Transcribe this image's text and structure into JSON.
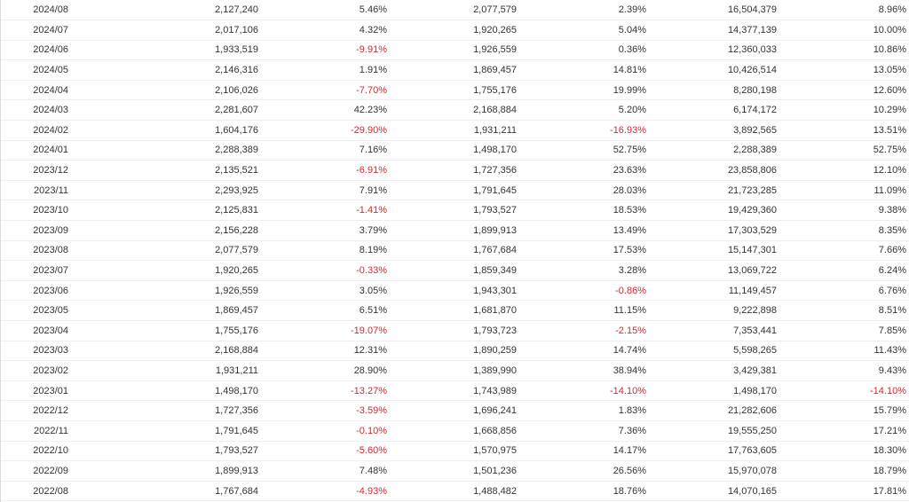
{
  "colors": {
    "negative": "#e0232d",
    "text": "#333333",
    "row_border": "#eeeeee"
  },
  "rows": [
    {
      "month": "2024/08",
      "revenue": "2,127,240",
      "mom": "5.46%",
      "prev_year_revenue": "2,077,579",
      "yoy": "2.39%",
      "cumulative": "16,504,379",
      "cumulative_yoy": "8.96%"
    },
    {
      "month": "2024/07",
      "revenue": "2,017,106",
      "mom": "4.32%",
      "prev_year_revenue": "1,920,265",
      "yoy": "5.04%",
      "cumulative": "14,377,139",
      "cumulative_yoy": "10.00%"
    },
    {
      "month": "2024/06",
      "revenue": "1,933,519",
      "mom": "-9.91%",
      "prev_year_revenue": "1,926,559",
      "yoy": "0.36%",
      "cumulative": "12,360,033",
      "cumulative_yoy": "10.86%"
    },
    {
      "month": "2024/05",
      "revenue": "2,146,316",
      "mom": "1.91%",
      "prev_year_revenue": "1,869,457",
      "yoy": "14.81%",
      "cumulative": "10,426,514",
      "cumulative_yoy": "13.05%"
    },
    {
      "month": "2024/04",
      "revenue": "2,106,026",
      "mom": "-7.70%",
      "prev_year_revenue": "1,755,176",
      "yoy": "19.99%",
      "cumulative": "8,280,198",
      "cumulative_yoy": "12.60%"
    },
    {
      "month": "2024/03",
      "revenue": "2,281,607",
      "mom": "42.23%",
      "prev_year_revenue": "2,168,884",
      "yoy": "5.20%",
      "cumulative": "6,174,172",
      "cumulative_yoy": "10.29%"
    },
    {
      "month": "2024/02",
      "revenue": "1,604,176",
      "mom": "-29.90%",
      "prev_year_revenue": "1,931,211",
      "yoy": "-16.93%",
      "cumulative": "3,892,565",
      "cumulative_yoy": "13.51%"
    },
    {
      "month": "2024/01",
      "revenue": "2,288,389",
      "mom": "7.16%",
      "prev_year_revenue": "1,498,170",
      "yoy": "52.75%",
      "cumulative": "2,288,389",
      "cumulative_yoy": "52.75%"
    },
    {
      "month": "2023/12",
      "revenue": "2,135,521",
      "mom": "-6.91%",
      "prev_year_revenue": "1,727,356",
      "yoy": "23.63%",
      "cumulative": "23,858,806",
      "cumulative_yoy": "12.10%"
    },
    {
      "month": "2023/11",
      "revenue": "2,293,925",
      "mom": "7.91%",
      "prev_year_revenue": "1,791,645",
      "yoy": "28.03%",
      "cumulative": "21,723,285",
      "cumulative_yoy": "11.09%"
    },
    {
      "month": "2023/10",
      "revenue": "2,125,831",
      "mom": "-1.41%",
      "prev_year_revenue": "1,793,527",
      "yoy": "18.53%",
      "cumulative": "19,429,360",
      "cumulative_yoy": "9.38%"
    },
    {
      "month": "2023/09",
      "revenue": "2,156,228",
      "mom": "3.79%",
      "prev_year_revenue": "1,899,913",
      "yoy": "13.49%",
      "cumulative": "17,303,529",
      "cumulative_yoy": "8.35%"
    },
    {
      "month": "2023/08",
      "revenue": "2,077,579",
      "mom": "8.19%",
      "prev_year_revenue": "1,767,684",
      "yoy": "17.53%",
      "cumulative": "15,147,301",
      "cumulative_yoy": "7.66%"
    },
    {
      "month": "2023/07",
      "revenue": "1,920,265",
      "mom": "-0.33%",
      "prev_year_revenue": "1,859,349",
      "yoy": "3.28%",
      "cumulative": "13,069,722",
      "cumulative_yoy": "6.24%"
    },
    {
      "month": "2023/06",
      "revenue": "1,926,559",
      "mom": "3.05%",
      "prev_year_revenue": "1,943,301",
      "yoy": "-0.86%",
      "cumulative": "11,149,457",
      "cumulative_yoy": "6.76%"
    },
    {
      "month": "2023/05",
      "revenue": "1,869,457",
      "mom": "6.51%",
      "prev_year_revenue": "1,681,870",
      "yoy": "11.15%",
      "cumulative": "9,222,898",
      "cumulative_yoy": "8.51%"
    },
    {
      "month": "2023/04",
      "revenue": "1,755,176",
      "mom": "-19.07%",
      "prev_year_revenue": "1,793,723",
      "yoy": "-2.15%",
      "cumulative": "7,353,441",
      "cumulative_yoy": "7.85%"
    },
    {
      "month": "2023/03",
      "revenue": "2,168,884",
      "mom": "12.31%",
      "prev_year_revenue": "1,890,259",
      "yoy": "14.74%",
      "cumulative": "5,598,265",
      "cumulative_yoy": "11.43%"
    },
    {
      "month": "2023/02",
      "revenue": "1,931,211",
      "mom": "28.90%",
      "prev_year_revenue": "1,389,990",
      "yoy": "38.94%",
      "cumulative": "3,429,381",
      "cumulative_yoy": "9.43%"
    },
    {
      "month": "2023/01",
      "revenue": "1,498,170",
      "mom": "-13.27%",
      "prev_year_revenue": "1,743,989",
      "yoy": "-14.10%",
      "cumulative": "1,498,170",
      "cumulative_yoy": "-14.10%"
    },
    {
      "month": "2022/12",
      "revenue": "1,727,356",
      "mom": "-3.59%",
      "prev_year_revenue": "1,696,241",
      "yoy": "1.83%",
      "cumulative": "21,282,606",
      "cumulative_yoy": "15.79%"
    },
    {
      "month": "2022/11",
      "revenue": "1,791,645",
      "mom": "-0.10%",
      "prev_year_revenue": "1,668,856",
      "yoy": "7.36%",
      "cumulative": "19,555,250",
      "cumulative_yoy": "17.21%"
    },
    {
      "month": "2022/10",
      "revenue": "1,793,527",
      "mom": "-5.60%",
      "prev_year_revenue": "1,570,975",
      "yoy": "14.17%",
      "cumulative": "17,763,605",
      "cumulative_yoy": "18.30%"
    },
    {
      "month": "2022/09",
      "revenue": "1,899,913",
      "mom": "7.48%",
      "prev_year_revenue": "1,501,236",
      "yoy": "26.56%",
      "cumulative": "15,970,078",
      "cumulative_yoy": "18.79%"
    },
    {
      "month": "2022/08",
      "revenue": "1,767,684",
      "mom": "-4.93%",
      "prev_year_revenue": "1,488,482",
      "yoy": "18.76%",
      "cumulative": "14,070,165",
      "cumulative_yoy": "17.81%"
    }
  ]
}
